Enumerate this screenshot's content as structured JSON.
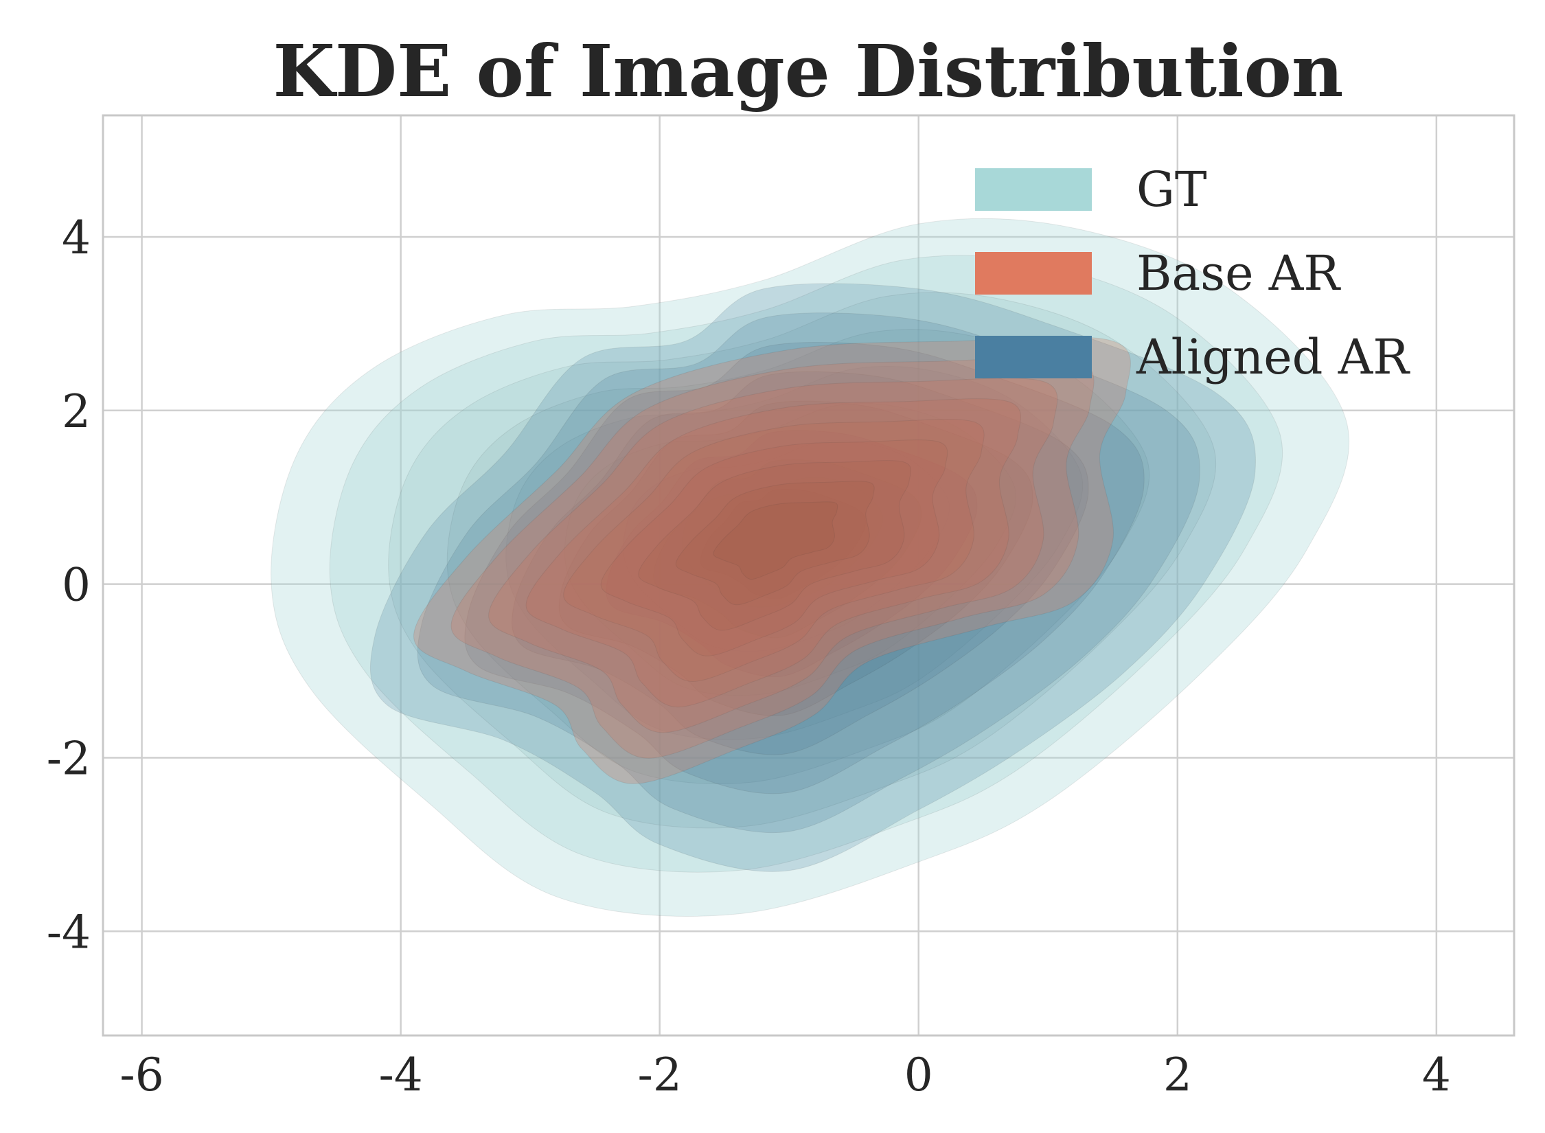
{
  "chart_data": {
    "type": "kde",
    "title": "KDE of Image Distribution",
    "xlabel": "",
    "ylabel": "",
    "xlim": [
      -6.3,
      4.6
    ],
    "ylim": [
      -5.2,
      5.4
    ],
    "xticks": [
      -6,
      -4,
      -2,
      0,
      2,
      4
    ],
    "yticks": [
      -4,
      -2,
      0,
      2,
      4
    ],
    "xtick_labels": [
      "-6",
      "-4",
      "-2",
      "0",
      "2",
      "4"
    ],
    "ytick_labels": [
      "-4",
      "-2",
      "0",
      "2",
      "4"
    ],
    "grid": true,
    "legend_position": "top-right",
    "series": [
      {
        "name": "GT",
        "color": "#a8d8d8",
        "peak": [
          -1.1,
          0.55
        ],
        "outer_boundary": [
          [
            -5.0,
            0.0
          ],
          [
            -4.8,
            1.5
          ],
          [
            -4.2,
            2.5
          ],
          [
            -3.2,
            3.1
          ],
          [
            -2.2,
            3.2
          ],
          [
            -1.2,
            3.5
          ],
          [
            0.0,
            4.15
          ],
          [
            1.2,
            4.1
          ],
          [
            2.4,
            3.4
          ],
          [
            3.3,
            1.9
          ],
          [
            3.0,
            0.4
          ],
          [
            2.2,
            -1.0
          ],
          [
            1.0,
            -2.5
          ],
          [
            0.0,
            -3.2
          ],
          [
            -1.4,
            -3.8
          ],
          [
            -2.8,
            -3.6
          ],
          [
            -3.8,
            -2.5
          ],
          [
            -4.7,
            -1.2
          ]
        ]
      },
      {
        "name": "Base AR",
        "color": "#e07a5f",
        "peak": [
          -1.1,
          0.55
        ],
        "outer_boundary": [
          [
            -3.9,
            -0.6
          ],
          [
            -3.5,
            0.3
          ],
          [
            -2.8,
            1.3
          ],
          [
            -2.2,
            2.2
          ],
          [
            -1.0,
            2.7
          ],
          [
            0.3,
            2.8
          ],
          [
            1.5,
            2.8
          ],
          [
            1.6,
            2.2
          ],
          [
            1.4,
            1.5
          ],
          [
            1.5,
            0.5
          ],
          [
            1.2,
            -0.2
          ],
          [
            0.5,
            -0.5
          ],
          [
            -0.4,
            -0.9
          ],
          [
            -0.8,
            -1.5
          ],
          [
            -1.4,
            -1.9
          ],
          [
            -2.2,
            -2.3
          ],
          [
            -2.6,
            -1.9
          ],
          [
            -2.8,
            -1.4
          ],
          [
            -3.5,
            -1.0
          ]
        ]
      },
      {
        "name": "Aligned AR",
        "color": "#4a7fa1",
        "peak": [
          -1.1,
          0.55
        ],
        "outer_boundary": [
          [
            -4.2,
            -0.6
          ],
          [
            -3.8,
            0.6
          ],
          [
            -3.2,
            1.5
          ],
          [
            -2.6,
            2.6
          ],
          [
            -1.8,
            2.8
          ],
          [
            -1.2,
            3.4
          ],
          [
            0.0,
            3.4
          ],
          [
            1.0,
            3.0
          ],
          [
            2.3,
            2.2
          ],
          [
            2.6,
            1.3
          ],
          [
            2.2,
            0.0
          ],
          [
            1.6,
            -1.0
          ],
          [
            0.8,
            -1.9
          ],
          [
            0.0,
            -2.6
          ],
          [
            -1.0,
            -3.3
          ],
          [
            -2.0,
            -3.0
          ],
          [
            -2.5,
            -2.4
          ],
          [
            -3.2,
            -1.8
          ],
          [
            -4.1,
            -1.4
          ]
        ]
      }
    ]
  }
}
